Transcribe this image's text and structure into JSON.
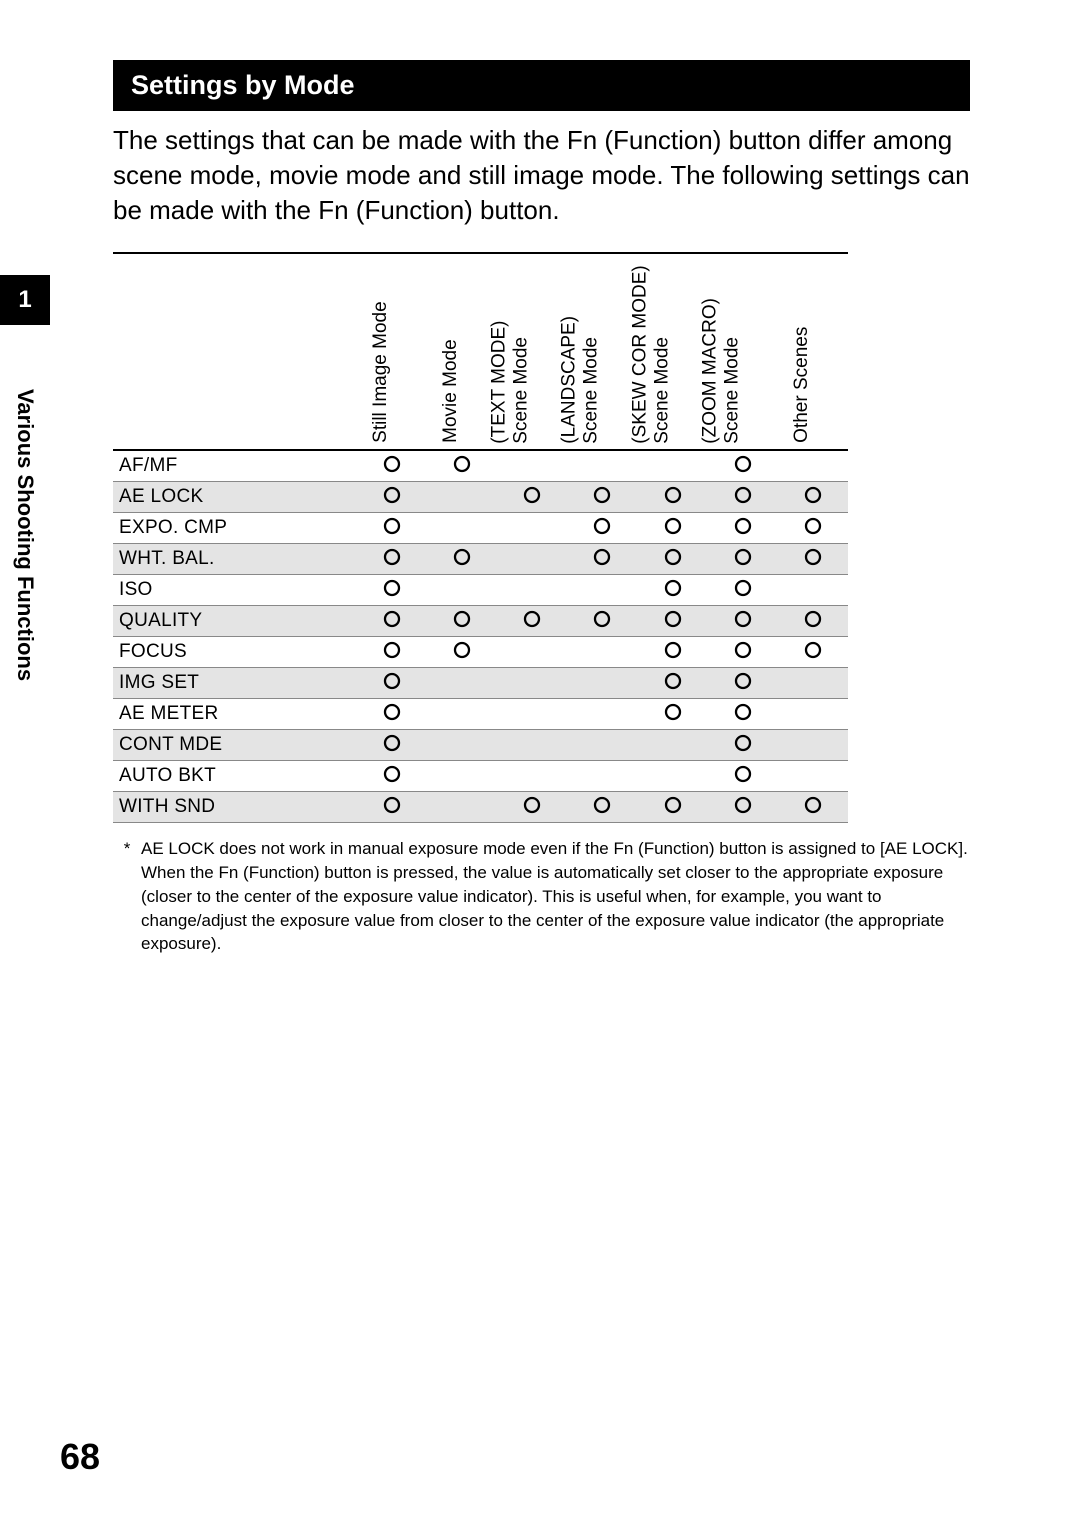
{
  "section_title": "Settings by Mode",
  "intro_text": "The settings that can be made with the Fn (Function) button differ among scene mode, movie mode and still image mode. The following settings can be made with the Fn (Function) button.",
  "side_tab": {
    "number": "1",
    "label": "Various Shooting Functions"
  },
  "page_number": "68",
  "mark_glyph": "{",
  "table": {
    "columns": [
      {
        "line1": "Still Image Mode",
        "line2": ""
      },
      {
        "line1": "Movie Mode",
        "line2": ""
      },
      {
        "line1": "Scene Mode",
        "line2": "(TEXT MODE)"
      },
      {
        "line1": "Scene Mode",
        "line2": "(LANDSCAPE)"
      },
      {
        "line1": "Scene Mode",
        "line2": "(SKEW COR MODE)"
      },
      {
        "line1": "Scene Mode",
        "line2": "(ZOOM MACRO)"
      },
      {
        "line1": "Other Scenes",
        "line2": ""
      }
    ],
    "rows": [
      {
        "label": "AF/MF",
        "marks": [
          true,
          true,
          false,
          false,
          false,
          true,
          false
        ]
      },
      {
        "label": "AE LOCK",
        "marks": [
          true,
          false,
          true,
          true,
          true,
          true,
          true
        ]
      },
      {
        "label": "EXPO. CMP",
        "marks": [
          true,
          false,
          false,
          true,
          true,
          true,
          true
        ]
      },
      {
        "label": "WHT. BAL.",
        "marks": [
          true,
          true,
          false,
          true,
          true,
          true,
          true
        ]
      },
      {
        "label": "ISO",
        "marks": [
          true,
          false,
          false,
          false,
          true,
          true,
          false
        ]
      },
      {
        "label": "QUALITY",
        "marks": [
          true,
          true,
          true,
          true,
          true,
          true,
          true
        ]
      },
      {
        "label": "FOCUS",
        "marks": [
          true,
          true,
          false,
          false,
          true,
          true,
          true
        ]
      },
      {
        "label": "IMG SET",
        "marks": [
          true,
          false,
          false,
          false,
          true,
          true,
          false
        ]
      },
      {
        "label": "AE METER",
        "marks": [
          true,
          false,
          false,
          false,
          true,
          true,
          false
        ]
      },
      {
        "label": "CONT MDE",
        "marks": [
          true,
          false,
          false,
          false,
          false,
          true,
          false
        ]
      },
      {
        "label": "AUTO BKT",
        "marks": [
          true,
          false,
          false,
          false,
          false,
          true,
          false
        ]
      },
      {
        "label": "WITH SND",
        "marks": [
          true,
          false,
          true,
          true,
          true,
          true,
          true
        ]
      }
    ]
  },
  "footnote": {
    "marker": "*",
    "text": "AE LOCK does not work in manual exposure mode even if the Fn (Function) button is assigned to [AE LOCK]. When the Fn (Function) button is pressed, the value is automatically set closer to the appropriate exposure (closer to the center of the exposure value indicator). This is useful when, for example, you want to change/adjust the exposure value from closer to the center of the exposure value indicator (the appropriate exposure)."
  },
  "style": {
    "background_color": "#ffffff",
    "section_bar_bg": "#000000",
    "section_bar_fg": "#ffffff",
    "shade_row_bg": "#e4e4e4",
    "border_color_strong": "#000000",
    "border_color_light": "#888888",
    "body_fontsize_pt": 20,
    "header_fontsize_pt": 14,
    "footnote_fontsize_pt": 13
  }
}
